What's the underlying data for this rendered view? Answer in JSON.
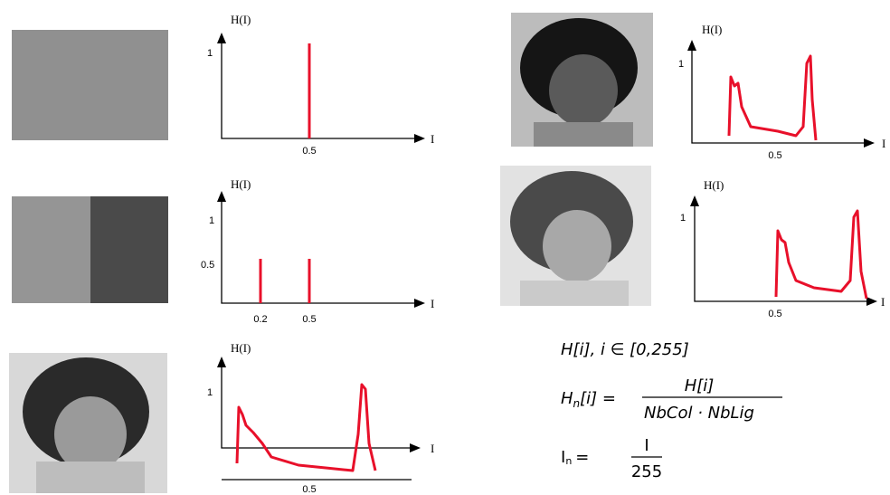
{
  "panels": [
    {
      "y_axis_label": "H(I)",
      "x_axis_label": "I",
      "y_ticks": [
        "1"
      ],
      "x_ticks": [
        "0.5"
      ]
    },
    {
      "y_axis_label": "H(I)",
      "x_axis_label": "I",
      "y_ticks": [
        "1",
        "0.5"
      ],
      "x_ticks": [
        "0.2",
        "0.5"
      ]
    },
    {
      "y_axis_label": "H(I)",
      "x_axis_label": "I",
      "y_ticks": [
        "1"
      ],
      "x_ticks": [
        "0.5"
      ]
    },
    {
      "y_axis_label": "H(I)",
      "x_axis_label": "I",
      "y_ticks": [
        "1"
      ],
      "x_ticks": [
        "0.5"
      ]
    },
    {
      "y_axis_label": "H(I)",
      "x_axis_label": "I",
      "y_ticks": [
        "1"
      ],
      "x_ticks": [
        "0.5"
      ]
    }
  ],
  "formulas": [
    {
      "text": "H[i],  i ∈ [0,255]"
    },
    {
      "lhs": "H",
      "lhs_sub": "n",
      "lhs_rest": "[i] =",
      "numerator": "H[i]",
      "denominator": "NbCol · NbLig"
    },
    {
      "lhs": "I",
      "lhs_sub": "n",
      "lhs_rest": "=",
      "numerator": "I",
      "denominator": "255"
    }
  ]
}
